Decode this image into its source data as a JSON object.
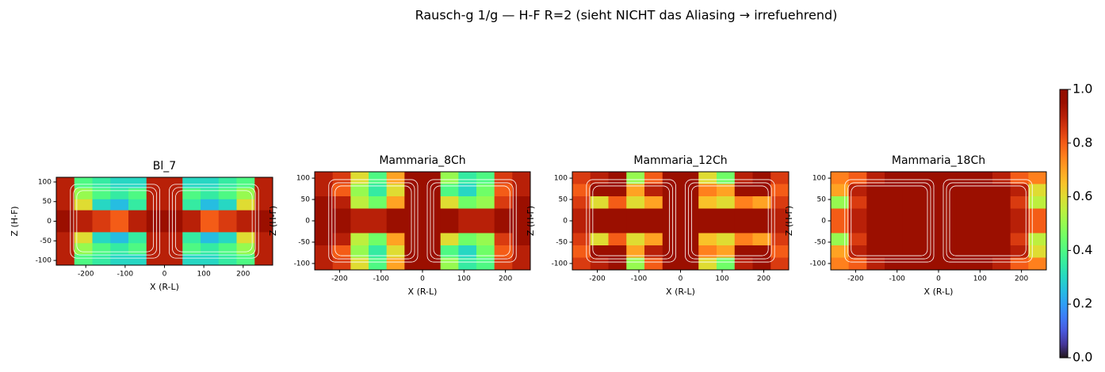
{
  "title": "Rausch-g 1/g — H-F R=2 (sieht NICHT das Aliasing → irrefuehrend)",
  "colorbar": {
    "lim": [
      0,
      1
    ],
    "ticks": [
      {
        "value": 0,
        "label": "0.0"
      },
      0.2,
      0.4,
      0.6,
      0.8,
      {
        "value": 1,
        "label": "1.0"
      }
    ]
  },
  "chart_data": [
    {
      "type": "heatmap",
      "title": "Bl_7",
      "xlabel": "X (R-L)",
      "ylabel": "Z (H-F)",
      "colormap": "turbo",
      "xlim": [
        -275,
        275
      ],
      "ylim": [
        -112,
        112
      ],
      "xticks": [
        -200,
        -100,
        0,
        100,
        200
      ],
      "yticks": [
        -100,
        -50,
        0,
        50,
        100
      ],
      "z": [
        [
          0.9,
          0.4,
          0.35,
          0.3,
          0.3,
          0.9,
          0.9,
          0.3,
          0.3,
          0.35,
          0.4,
          0.9
        ],
        [
          0.9,
          0.5,
          0.4,
          0.35,
          0.4,
          0.9,
          0.9,
          0.4,
          0.35,
          0.4,
          0.5,
          0.9
        ],
        [
          0.9,
          0.6,
          0.3,
          0.25,
          0.35,
          0.9,
          0.9,
          0.35,
          0.25,
          0.3,
          0.6,
          0.9
        ],
        [
          0.95,
          0.9,
          0.85,
          0.8,
          0.9,
          0.95,
          0.95,
          0.9,
          0.8,
          0.85,
          0.9,
          0.95
        ],
        [
          0.95,
          0.9,
          0.85,
          0.8,
          0.9,
          0.95,
          0.95,
          0.9,
          0.8,
          0.85,
          0.9,
          0.95
        ],
        [
          0.9,
          0.6,
          0.3,
          0.25,
          0.35,
          0.9,
          0.9,
          0.35,
          0.25,
          0.3,
          0.6,
          0.9
        ],
        [
          0.9,
          0.5,
          0.4,
          0.35,
          0.4,
          0.9,
          0.9,
          0.4,
          0.35,
          0.4,
          0.5,
          0.9
        ],
        [
          0.9,
          0.4,
          0.35,
          0.3,
          0.3,
          0.9,
          0.9,
          0.3,
          0.3,
          0.35,
          0.4,
          0.9
        ]
      ]
    },
    {
      "type": "heatmap",
      "title": "Mammaria_8Ch",
      "xlabel": "X (R-L)",
      "ylabel": "Z (H-F)",
      "colormap": "turbo",
      "xlim": [
        -260,
        260
      ],
      "ylim": [
        -115,
        115
      ],
      "xticks": [
        -200,
        -100,
        0,
        100,
        200
      ],
      "yticks": [
        -100,
        -50,
        0,
        50,
        100
      ],
      "z": [
        [
          0.9,
          0.85,
          0.6,
          0.4,
          0.7,
          0.95,
          0.95,
          0.5,
          0.35,
          0.4,
          0.85,
          0.9
        ],
        [
          0.9,
          0.8,
          0.5,
          0.35,
          0.6,
          0.95,
          0.95,
          0.4,
          0.3,
          0.45,
          0.8,
          0.9
        ],
        [
          0.95,
          0.9,
          0.55,
          0.45,
          0.7,
          0.95,
          0.95,
          0.6,
          0.45,
          0.5,
          0.85,
          0.95
        ],
        [
          0.95,
          0.95,
          0.9,
          0.9,
          0.95,
          0.95,
          0.95,
          0.95,
          0.9,
          0.9,
          0.95,
          0.95
        ],
        [
          0.95,
          0.95,
          0.9,
          0.9,
          0.95,
          0.95,
          0.95,
          0.95,
          0.9,
          0.9,
          0.95,
          0.95
        ],
        [
          0.95,
          0.9,
          0.55,
          0.45,
          0.7,
          0.95,
          0.95,
          0.6,
          0.45,
          0.5,
          0.85,
          0.95
        ],
        [
          0.9,
          0.8,
          0.5,
          0.35,
          0.6,
          0.95,
          0.95,
          0.4,
          0.3,
          0.45,
          0.8,
          0.9
        ],
        [
          0.9,
          0.85,
          0.6,
          0.4,
          0.7,
          0.95,
          0.95,
          0.5,
          0.35,
          0.4,
          0.85,
          0.9
        ]
      ]
    },
    {
      "type": "heatmap",
      "title": "Mammaria_12Ch",
      "xlabel": "X (R-L)",
      "ylabel": "Z (H-F)",
      "colormap": "turbo",
      "xlim": [
        -260,
        260
      ],
      "ylim": [
        -115,
        115
      ],
      "xticks": [
        -200,
        -100,
        0,
        100,
        200
      ],
      "yticks": [
        -100,
        -50,
        0,
        50,
        100
      ],
      "z": [
        [
          0.85,
          0.9,
          0.95,
          0.5,
          0.8,
          0.95,
          0.95,
          0.6,
          0.45,
          0.9,
          0.95,
          0.85
        ],
        [
          0.8,
          0.95,
          0.95,
          0.7,
          0.9,
          0.95,
          0.95,
          0.75,
          0.7,
          0.95,
          0.95,
          0.8
        ],
        [
          0.85,
          0.6,
          0.8,
          0.6,
          0.7,
          0.95,
          0.95,
          0.65,
          0.6,
          0.75,
          0.7,
          0.85
        ],
        [
          0.9,
          0.95,
          0.95,
          0.95,
          0.95,
          0.95,
          0.95,
          0.95,
          0.95,
          0.95,
          0.95,
          0.9
        ],
        [
          0.9,
          0.95,
          0.95,
          0.95,
          0.95,
          0.95,
          0.95,
          0.95,
          0.95,
          0.95,
          0.95,
          0.9
        ],
        [
          0.85,
          0.6,
          0.8,
          0.6,
          0.7,
          0.95,
          0.95,
          0.65,
          0.6,
          0.75,
          0.7,
          0.85
        ],
        [
          0.8,
          0.95,
          0.95,
          0.7,
          0.9,
          0.95,
          0.95,
          0.75,
          0.7,
          0.95,
          0.95,
          0.8
        ],
        [
          0.85,
          0.9,
          0.95,
          0.5,
          0.8,
          0.95,
          0.95,
          0.6,
          0.45,
          0.9,
          0.95,
          0.85
        ]
      ]
    },
    {
      "type": "heatmap",
      "title": "Mammaria_18Ch",
      "xlabel": "X (R-L)",
      "ylabel": "Z (H-F)",
      "colormap": "turbo",
      "xlim": [
        -260,
        260
      ],
      "ylim": [
        -115,
        115
      ],
      "xticks": [
        -200,
        -100,
        0,
        100,
        200
      ],
      "yticks": [
        -100,
        -50,
        0,
        50,
        100
      ],
      "z": [
        [
          0.75,
          0.8,
          0.9,
          0.95,
          0.95,
          0.95,
          0.95,
          0.95,
          0.95,
          0.9,
          0.8,
          0.75
        ],
        [
          0.7,
          0.9,
          0.95,
          0.95,
          0.95,
          0.95,
          0.95,
          0.95,
          0.95,
          0.95,
          0.9,
          0.6
        ],
        [
          0.5,
          0.85,
          0.95,
          0.95,
          0.95,
          0.95,
          0.95,
          0.95,
          0.95,
          0.95,
          0.85,
          0.55
        ],
        [
          0.8,
          0.9,
          0.95,
          0.95,
          0.95,
          0.95,
          0.95,
          0.95,
          0.95,
          0.95,
          0.9,
          0.8
        ],
        [
          0.8,
          0.9,
          0.95,
          0.95,
          0.95,
          0.95,
          0.95,
          0.95,
          0.95,
          0.95,
          0.9,
          0.8
        ],
        [
          0.5,
          0.85,
          0.95,
          0.95,
          0.95,
          0.95,
          0.95,
          0.95,
          0.95,
          0.95,
          0.85,
          0.55
        ],
        [
          0.7,
          0.9,
          0.95,
          0.95,
          0.95,
          0.95,
          0.95,
          0.95,
          0.95,
          0.95,
          0.9,
          0.6
        ],
        [
          0.75,
          0.8,
          0.9,
          0.95,
          0.95,
          0.95,
          0.95,
          0.95,
          0.95,
          0.9,
          0.8,
          0.75
        ]
      ]
    }
  ]
}
